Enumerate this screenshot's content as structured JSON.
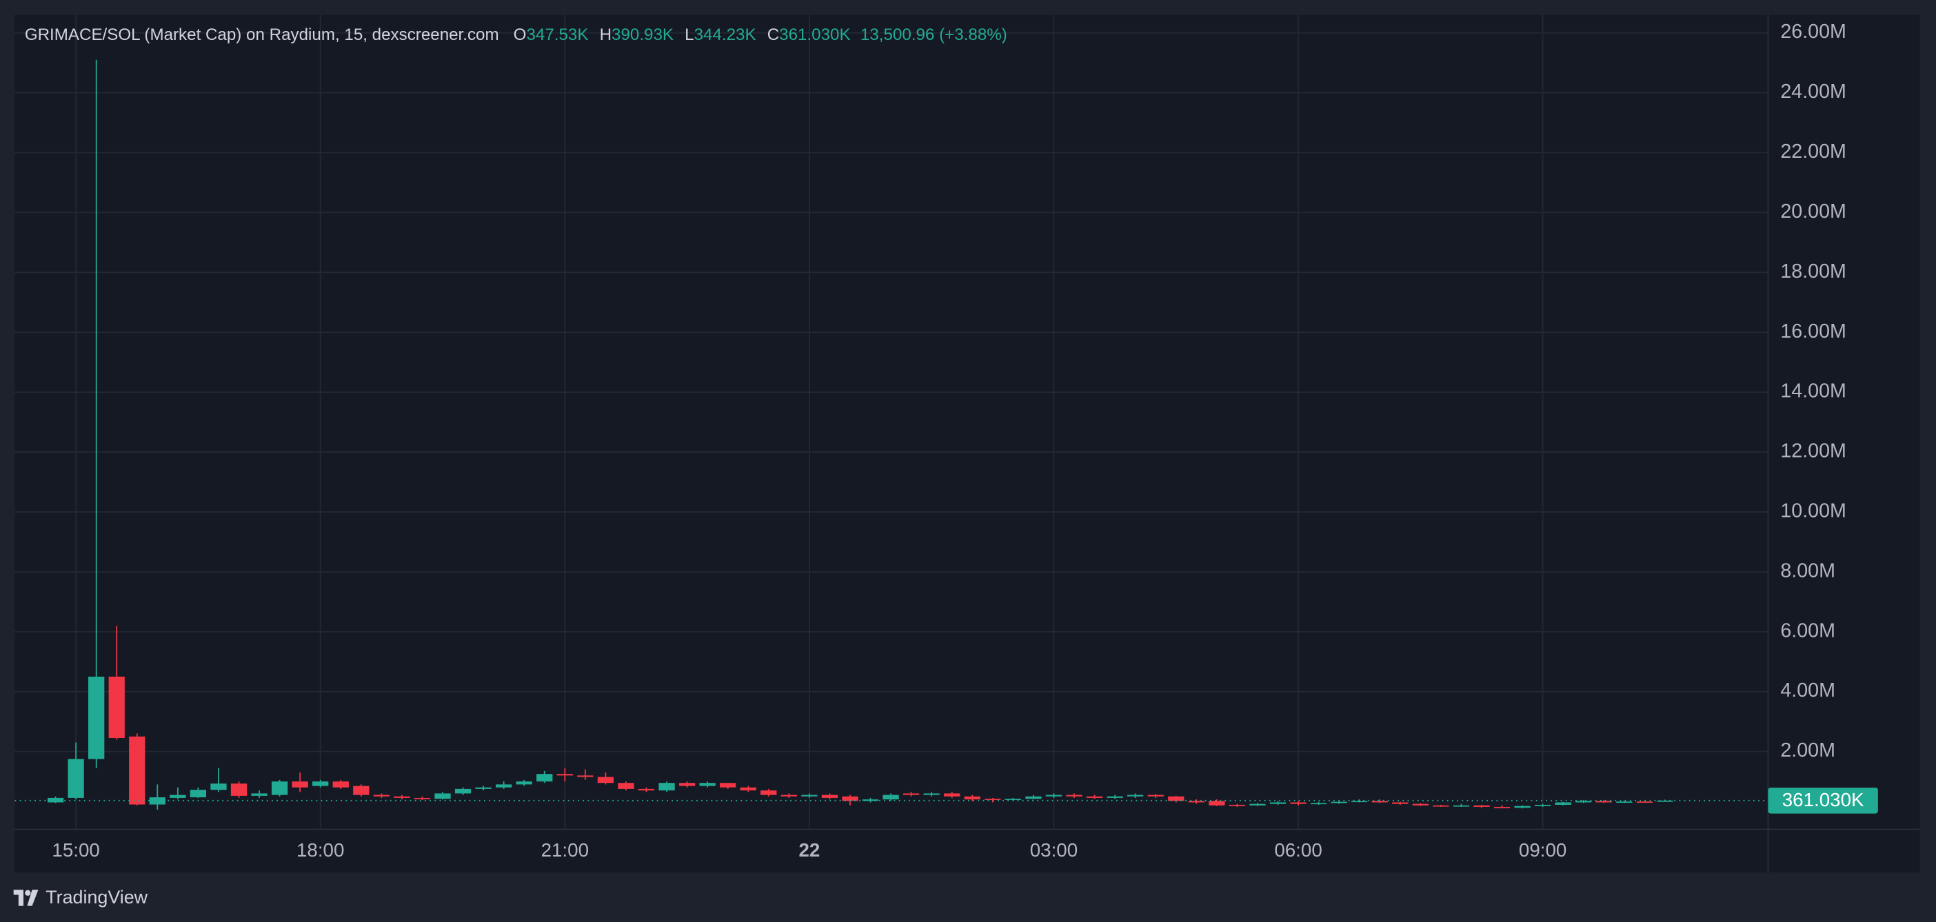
{
  "chart_data": {
    "type": "candlestick",
    "title": "GRIMACE/SOL (Market Cap) on Raydium, 15, dexscreener.com",
    "ohlc_legend": [
      {
        "key": "O",
        "value": "347.53K"
      },
      {
        "key": "H",
        "value": "390.93K"
      },
      {
        "key": "L",
        "value": "344.23K"
      },
      {
        "key": "C",
        "value": "361.030K"
      }
    ],
    "change": "13,500.96 (+3.88%)",
    "last_price_label": "361.030K",
    "up_color": "#22ab94",
    "down_color": "#f23645",
    "grid": true,
    "x": [
      "14:45",
      "15:00",
      "15:15",
      "15:30",
      "15:45",
      "16:00",
      "16:15",
      "16:30",
      "16:45",
      "17:00",
      "17:15",
      "17:30",
      "17:45",
      "18:00",
      "18:15",
      "18:30",
      "18:45",
      "19:00",
      "19:15",
      "19:30",
      "19:45",
      "20:00",
      "20:15",
      "20:30",
      "20:45",
      "21:00",
      "21:15",
      "21:30",
      "21:45",
      "22:00",
      "22:15",
      "22:30",
      "22:45",
      "23:00",
      "23:15",
      "23:30",
      "23:45",
      "00:00",
      "00:15",
      "00:30",
      "00:45",
      "01:00",
      "01:15",
      "01:30",
      "01:45",
      "02:00",
      "02:15",
      "02:30",
      "02:45",
      "03:00",
      "03:15",
      "03:30",
      "03:45",
      "04:00",
      "04:15",
      "04:30",
      "04:45",
      "05:00",
      "05:15",
      "05:30",
      "05:45",
      "06:00",
      "06:15",
      "06:30",
      "06:45",
      "07:00",
      "07:15",
      "07:30",
      "07:45",
      "08:00",
      "08:15",
      "08:30",
      "08:45",
      "09:00",
      "09:15",
      "09:30",
      "09:45",
      "10:00",
      "10:15",
      "10:30"
    ],
    "open": [
      300000,
      450000,
      1750000,
      4500000,
      2500000,
      230000,
      450000,
      470000,
      720000,
      930000,
      520000,
      550000,
      1000000,
      850000,
      1000000,
      850000,
      550000,
      500000,
      450000,
      420000,
      600000,
      750000,
      800000,
      900000,
      1000000,
      1250000,
      1200000,
      1150000,
      950000,
      750000,
      700000,
      950000,
      850000,
      950000,
      800000,
      700000,
      550000,
      500000,
      550000,
      500000,
      350000,
      400000,
      600000,
      550000,
      600000,
      500000,
      420000,
      380000,
      420000,
      500000,
      550000,
      500000,
      450000,
      500000,
      550000,
      500000,
      350000,
      350000,
      220000,
      200000,
      250000,
      300000,
      250000,
      280000,
      320000,
      350000,
      300000,
      250000,
      200000,
      180000,
      200000,
      150000,
      120000,
      180000,
      220000,
      300000,
      350000,
      300000,
      330000,
      347530
    ],
    "high": [
      500000,
      2300000,
      25100000,
      6200000,
      2600000,
      900000,
      800000,
      800000,
      1450000,
      1000000,
      700000,
      1050000,
      1300000,
      1050000,
      1050000,
      900000,
      600000,
      550000,
      500000,
      650000,
      800000,
      850000,
      1000000,
      1050000,
      1350000,
      1450000,
      1400000,
      1300000,
      1000000,
      800000,
      1000000,
      1000000,
      1000000,
      950000,
      850000,
      750000,
      600000,
      600000,
      600000,
      550000,
      450000,
      600000,
      650000,
      650000,
      650000,
      550000,
      450000,
      450000,
      550000,
      600000,
      600000,
      550000,
      550000,
      600000,
      580000,
      520000,
      400000,
      400000,
      250000,
      280000,
      350000,
      350000,
      320000,
      350000,
      400000,
      400000,
      320000,
      280000,
      220000,
      250000,
      220000,
      200000,
      200000,
      250000,
      320000,
      380000,
      380000,
      360000,
      350000,
      390930
    ],
    "low": [
      280000,
      400000,
      1450000,
      2400000,
      200000,
      60000,
      400000,
      450000,
      650000,
      450000,
      450000,
      500000,
      650000,
      800000,
      750000,
      500000,
      450000,
      400000,
      380000,
      400000,
      550000,
      700000,
      750000,
      850000,
      950000,
      1000000,
      1050000,
      900000,
      700000,
      650000,
      650000,
      800000,
      800000,
      750000,
      650000,
      500000,
      450000,
      450000,
      400000,
      200000,
      300000,
      350000,
      500000,
      500000,
      450000,
      350000,
      300000,
      350000,
      400000,
      450000,
      450000,
      420000,
      420000,
      450000,
      450000,
      300000,
      250000,
      180000,
      150000,
      180000,
      220000,
      200000,
      220000,
      250000,
      300000,
      280000,
      220000,
      180000,
      150000,
      150000,
      120000,
      100000,
      100000,
      150000,
      200000,
      280000,
      280000,
      280000,
      300000,
      344230
    ],
    "close": [
      450000,
      1750000,
      4500000,
      2450000,
      230000,
      470000,
      550000,
      720000,
      930000,
      520000,
      600000,
      1000000,
      800000,
      1000000,
      800000,
      550000,
      500000,
      450000,
      420000,
      600000,
      750000,
      800000,
      900000,
      1000000,
      1250000,
      1200000,
      1150000,
      950000,
      750000,
      700000,
      950000,
      850000,
      950000,
      800000,
      700000,
      550000,
      500000,
      550000,
      450000,
      350000,
      400000,
      550000,
      550000,
      600000,
      500000,
      400000,
      380000,
      420000,
      500000,
      550000,
      500000,
      450000,
      500000,
      550000,
      500000,
      350000,
      300000,
      200000,
      200000,
      250000,
      300000,
      250000,
      280000,
      320000,
      350000,
      300000,
      250000,
      200000,
      180000,
      200000,
      150000,
      120000,
      180000,
      220000,
      300000,
      350000,
      300000,
      330000,
      310000,
      361030
    ],
    "xticks": [
      {
        "value": "15:00",
        "label": "15:00"
      },
      {
        "value": "18:00",
        "label": "18:00"
      },
      {
        "value": "21:00",
        "label": "21:00"
      },
      {
        "value": "00:00",
        "label": "22"
      },
      {
        "value": "03:00",
        "label": "03:00"
      },
      {
        "value": "06:00",
        "label": "06:00"
      },
      {
        "value": "09:00",
        "label": "09:00"
      }
    ],
    "ylim": [
      -600000,
      26600000
    ],
    "yticks": [
      {
        "value": 2000000,
        "label": "2.00M"
      },
      {
        "value": 4000000,
        "label": "4.00M"
      },
      {
        "value": 6000000,
        "label": "6.00M"
      },
      {
        "value": 8000000,
        "label": "8.00M"
      },
      {
        "value": 10000000,
        "label": "10.00M"
      },
      {
        "value": 12000000,
        "label": "12.00M"
      },
      {
        "value": 14000000,
        "label": "14.00M"
      },
      {
        "value": 16000000,
        "label": "16.00M"
      },
      {
        "value": 18000000,
        "label": "18.00M"
      },
      {
        "value": 20000000,
        "label": "20.00M"
      },
      {
        "value": 22000000,
        "label": "22.00M"
      },
      {
        "value": 24000000,
        "label": "24.00M"
      },
      {
        "value": 26000000,
        "label": "26.00M"
      }
    ]
  },
  "footer": {
    "brand": "TradingView"
  }
}
